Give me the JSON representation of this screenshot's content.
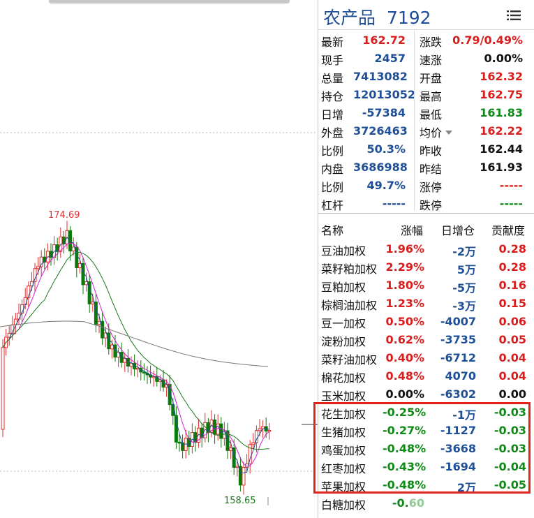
{
  "quote": {
    "title": "农产品",
    "code": "7192",
    "rows": [
      {
        "l1": "最新",
        "v1": "162.72",
        "c1": "red",
        "l2": "涨跌",
        "v2": "0.79/0.49%",
        "c2": "red"
      },
      {
        "l1": "现手",
        "v1": "2457",
        "c1": "blue",
        "l2": "速涨",
        "v2": "0.00%",
        "c2": "black"
      },
      {
        "l1": "总量",
        "v1": "7413082",
        "c1": "blue",
        "l2": "开盘",
        "v2": "162.32",
        "c2": "red"
      },
      {
        "l1": "持仓",
        "v1": "12013052",
        "c1": "blue",
        "l2": "最高",
        "v2": "162.75",
        "c2": "red"
      },
      {
        "l1": "日增",
        "v1": "-57384",
        "c1": "blue",
        "l2": "最低",
        "v2": "161.83",
        "c2": "green"
      },
      {
        "l1": "外盘",
        "v1": "3726463",
        "c1": "blue",
        "l2": "均价",
        "v2": "162.22",
        "c2": "red"
      },
      {
        "l1": "比例",
        "v1": "50.3%",
        "c1": "blue",
        "l2": "昨收",
        "v2": "162.44",
        "c2": "black"
      },
      {
        "l1": "内盘",
        "v1": "3686988",
        "c1": "blue",
        "l2": "昨结",
        "v2": "161.93",
        "c2": "black"
      },
      {
        "l1": "比例",
        "v1": "49.7%",
        "c1": "blue",
        "l2": "涨停",
        "v2": "-----",
        "c2": "red"
      },
      {
        "l1": "杠杆",
        "v1": "-----",
        "c1": "blue",
        "l2": "跌停",
        "v2": "-----",
        "c2": "green"
      }
    ]
  },
  "table": {
    "headers": {
      "name": "名称",
      "pct": "涨幅",
      "inc": "日增仓",
      "contrib": "贡献度"
    },
    "rows": [
      {
        "name": "豆油加权",
        "pct": "1.96%",
        "inc": "-2万",
        "contrib": "0.28",
        "pc": "red",
        "ic": "blue",
        "cc": "red"
      },
      {
        "name": "菜籽粕加权",
        "pct": "2.29%",
        "inc": "5万",
        "contrib": "0.28",
        "pc": "red",
        "ic": "blue",
        "cc": "red"
      },
      {
        "name": "豆粕加权",
        "pct": "1.80%",
        "inc": "-5万",
        "contrib": "0.16",
        "pc": "red",
        "ic": "blue",
        "cc": "red"
      },
      {
        "name": "棕榈油加权",
        "pct": "1.23%",
        "inc": "-3万",
        "contrib": "0.15",
        "pc": "red",
        "ic": "blue",
        "cc": "red"
      },
      {
        "name": "豆一加权",
        "pct": "0.50%",
        "inc": "-4007",
        "contrib": "0.06",
        "pc": "red",
        "ic": "blue",
        "cc": "red"
      },
      {
        "name": "淀粉加权",
        "pct": "0.62%",
        "inc": "-3735",
        "contrib": "0.05",
        "pc": "red",
        "ic": "blue",
        "cc": "red"
      },
      {
        "name": "菜籽油加权",
        "pct": "0.40%",
        "inc": "-6712",
        "contrib": "0.04",
        "pc": "red",
        "ic": "blue",
        "cc": "red"
      },
      {
        "name": "棉花加权",
        "pct": "0.48%",
        "inc": "4070",
        "contrib": "0.04",
        "pc": "red",
        "ic": "blue",
        "cc": "red"
      },
      {
        "name": "玉米加权",
        "pct": "0.00%",
        "inc": "-6302",
        "contrib": "0.00",
        "pc": "black",
        "ic": "blue",
        "cc": "black"
      },
      {
        "name": "花生加权",
        "pct": "-0.25%",
        "inc": "-1万",
        "contrib": "-0.03",
        "pc": "green",
        "ic": "blue",
        "cc": "green"
      },
      {
        "name": "生猪加权",
        "pct": "-0.27%",
        "inc": "-1127",
        "contrib": "-0.03",
        "pc": "green",
        "ic": "blue",
        "cc": "green"
      },
      {
        "name": "鸡蛋加权",
        "pct": "-0.48%",
        "inc": "-3668",
        "contrib": "-0.03",
        "pc": "green",
        "ic": "blue",
        "cc": "green"
      },
      {
        "name": "红枣加权",
        "pct": "-0.43%",
        "inc": "-1694",
        "contrib": "-0.04",
        "pc": "green",
        "ic": "blue",
        "cc": "green"
      },
      {
        "name": "苹果加权",
        "pct": "-0.48%",
        "inc": "2万",
        "contrib": "-0.05",
        "pc": "green",
        "ic": "blue",
        "cc": "green"
      },
      {
        "name": "白糖加权",
        "pct": "-0.60",
        "inc": "",
        "contrib": "",
        "pc": "green",
        "ic": "blue",
        "cc": "green"
      }
    ]
  },
  "chart_data": {
    "type": "candlestick",
    "high_label": "174.69",
    "low_label": "158.65",
    "colors": {
      "up": "#e03030",
      "down": "#0a7a0a",
      "ma_short": "#d020d0",
      "ma_mid": "#1a7a1a",
      "ma_long": "#777777",
      "ma_fast": "#1f4f96"
    }
  }
}
